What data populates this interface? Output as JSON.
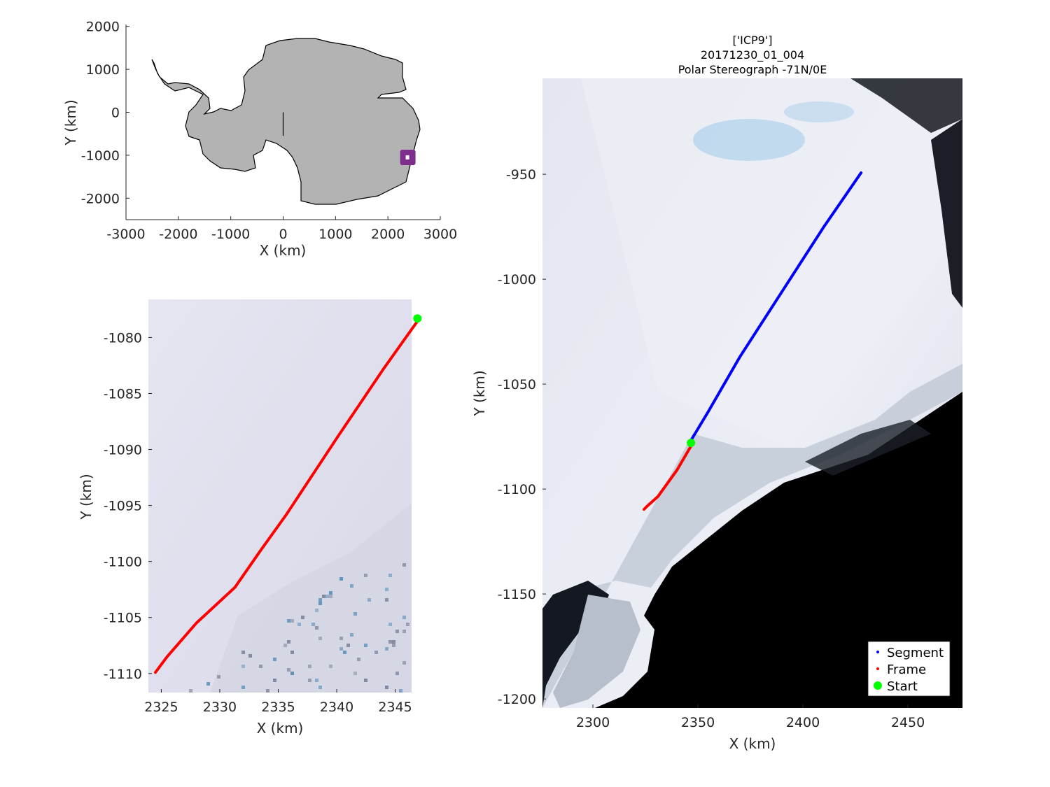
{
  "chart_data": [
    {
      "type": "map",
      "xlabel": "X (km)",
      "ylabel": "Y (km)",
      "xlim": [
        -3000,
        3000
      ],
      "ylim": [
        -2500,
        2500
      ],
      "xticks": [
        "-3000",
        "-2000",
        "-1000",
        "0",
        "1000",
        "2000",
        "3000"
      ],
      "yticks": [
        "2000",
        "1000",
        "0",
        "-1000",
        "-2000"
      ],
      "land_color": "#b3b3b3",
      "highlight_box": {
        "x": 2380,
        "y": -1050,
        "color": "#7e2f8e"
      },
      "meridian_line": {
        "x": [
          0,
          0
        ],
        "y": [
          0,
          -550
        ]
      }
    },
    {
      "type": "line",
      "xlabel": "X (km)",
      "ylabel": "Y (km)",
      "xlim": [
        2323.9,
        2346.4
      ],
      "ylim": [
        -1111.7,
        -1076.6
      ],
      "xticks": [
        "2325",
        "2330",
        "2335",
        "2340",
        "2345"
      ],
      "yticks": [
        "-1080",
        "-1085",
        "-1090",
        "-1095",
        "-1100",
        "-1105",
        "-1110"
      ],
      "series": [
        {
          "label": "frame",
          "color": "#ff0000",
          "x": [
            2324.5,
            2325.5,
            2328,
            2331.3,
            2333.5,
            2335.7,
            2340,
            2344,
            2347
          ],
          "y": [
            -1109.9,
            -1108.5,
            -1105.5,
            -1102.3,
            -1099,
            -1095.8,
            -1089,
            -1082.8,
            -1078.4
          ]
        }
      ],
      "start": {
        "x": 2346.9,
        "y": -1078.3,
        "color": "#00ff00"
      }
    },
    {
      "type": "line",
      "title": [
        "['ICP9']",
        "20171230_01_004",
        "Polar Stereograph -71N/0E"
      ],
      "xlabel": "X (km)",
      "ylabel": "Y (km)",
      "xlim": [
        2276,
        2476
      ],
      "ylim": [
        -1204.3,
        -904.3
      ],
      "xticks": [
        "2300",
        "2350",
        "2400",
        "2450"
      ],
      "yticks": [
        "-950",
        "-1000",
        "-1050",
        "-1100",
        "-1150",
        "-1200"
      ],
      "series": [
        {
          "name": "Segment",
          "color": "#0000ff",
          "x": [
            2347,
            2355,
            2370,
            2390,
            2410,
            2427.7
          ],
          "y": [
            -1076.3,
            -1063,
            -1037,
            -1006,
            -975,
            -949.3
          ]
        },
        {
          "name": "Frame",
          "color": "#ff0000",
          "x": [
            2324.3,
            2326,
            2331,
            2340,
            2347
          ],
          "y": [
            -1109.7,
            -1108,
            -1103.5,
            -1091,
            -1079
          ]
        }
      ],
      "start": {
        "x": 2346.7,
        "y": -1078,
        "color": "#00ff00"
      },
      "legend": {
        "placement": "bottom-right",
        "entries": [
          "Segment",
          "Frame",
          "Start"
        ]
      }
    }
  ]
}
